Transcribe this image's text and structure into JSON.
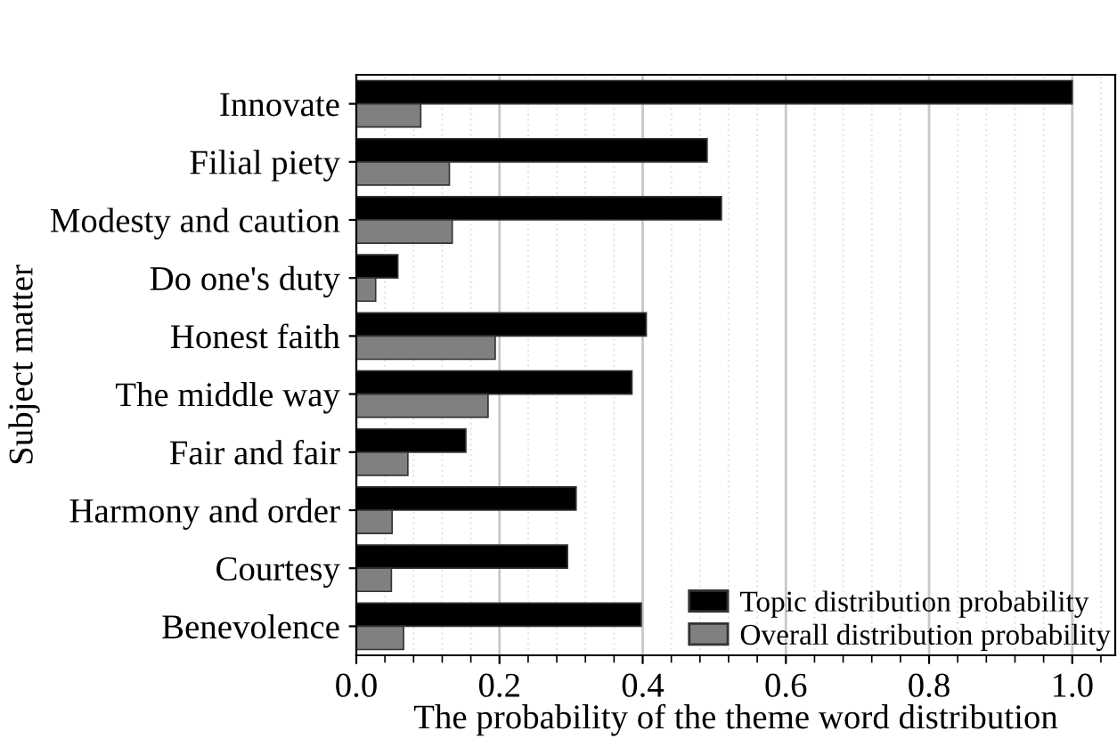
{
  "chart_data": {
    "type": "bar",
    "orientation": "horizontal",
    "xlabel": "The probability of the theme word distribution",
    "ylabel": "Subject matter",
    "categories": [
      "Innovate",
      "Filial piety",
      "Modesty and caution",
      "Do one's duty",
      "Honest faith",
      "The middle way",
      "Fair and fair",
      "Harmony and order",
      "Courtesy",
      "Benevolence"
    ],
    "series": [
      {
        "name": "Topic distribution probability",
        "color": "#000000",
        "values": [
          1.0,
          0.49,
          0.51,
          0.058,
          0.405,
          0.385,
          0.153,
          0.307,
          0.295,
          0.398
        ]
      },
      {
        "name": "Overall distribution probability",
        "color": "#808080",
        "values": [
          0.09,
          0.13,
          0.134,
          0.027,
          0.194,
          0.184,
          0.072,
          0.05,
          0.049,
          0.066
        ]
      }
    ],
    "xlim": [
      0,
      1.06
    ],
    "xticks": [
      {
        "value": 0,
        "label": "0.0"
      },
      0.2,
      0.4,
      0.6,
      0.8,
      {
        "value": 1.0,
        "label": "1.0"
      }
    ],
    "grid": "x",
    "legend": "bottom right"
  }
}
